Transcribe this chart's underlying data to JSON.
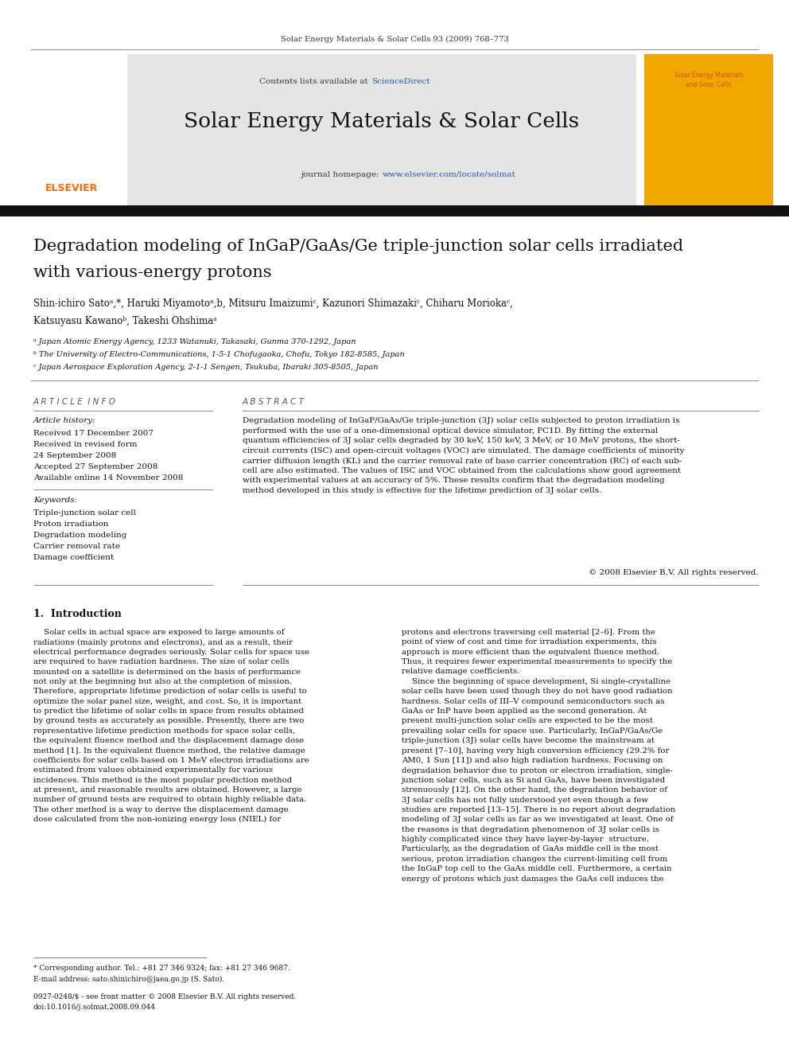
{
  "page_width": 9.92,
  "page_height": 13.23,
  "background_color": "#ffffff",
  "top_journal_ref": "Solar Energy Materials & Solar Cells 93 (2009) 768–773",
  "header_bg": "#e5e5e5",
  "header_sciencedirect_color": "#2255aa",
  "journal_url_color": "#2255aa",
  "journal_title": "Solar Energy Materials & Solar Cells",
  "journal_url": "www.elsevier.com/locate/solmat",
  "elsevier_color": "#ff6600",
  "cover_bg": "#f0a800",
  "cover_text_color": "#cc5500",
  "dark_bar_color": "#111111",
  "article_title_line1": "Degradation modeling of InGaP/GaAs/Ge triple-junction solar cells irradiated",
  "article_title_line2": "with various-energy protons",
  "authors_line1": "Shin-ichiro Satoᵃ,*, Haruki Miyamotoᵃ,b, Mitsuru Imaizumiᶜ, Kazunori Shimazakiᶜ, Chiharu Moriokaᶜ,",
  "authors_line2": "Katsuyasu Kawanoᵇ, Takeshi Ohshimaᵃ",
  "affil_a": "ᵃ Japan Atomic Energy Agency, 1233 Watanuki, Takasaki, Gunma 370-1292, Japan",
  "affil_b": "ᵇ The University of Electro-Communications, 1-5-1 Chofugaoka, Chofu, Tokyo 182-8585, Japan",
  "affil_c": "ᶜ Japan Aerospace Exploration Agency, 2-1-1 Sengen, Tsukuba, Ibaraki 305-8505, Japan",
  "section_article_info": "A R T I C L E  I N F O",
  "section_abstract": "A B S T R A C T",
  "article_history_label": "Article history:",
  "received1": "Received 17 December 2007",
  "received_revised": "Received in revised form",
  "revised_date": "24 September 2008",
  "accepted": "Accepted 27 September 2008",
  "available": "Available online 14 November 2008",
  "keywords_label": "Keywords:",
  "keyword1": "Triple-junction solar cell",
  "keyword2": "Proton irradiation",
  "keyword3": "Degradation modeling",
  "keyword4": "Carrier removal rate",
  "keyword5": "Damage coefficient",
  "abstract_body": "Degradation modeling of InGaP/GaAs/Ge triple-junction (3J) solar cells subjected to proton irradiation is\nperformed with the use of a one-dimensional optical device simulator, PC1D. By fitting the external\nquantum efficiencies of 3J solar cells degraded by 30 keV, 150 keV, 3 MeV, or 10 MeV protons, the short-\ncircuit currents (ISC) and open-circuit voltages (VOC) are simulated. The damage coefficients of minority\ncarrier diffusion length (KL) and the carrier removal rate of base carrier concentration (RC) of each sub-\ncell are also estimated. The values of ISC and VOC obtained from the calculations show good agreement\nwith experimental values at an accuracy of 5%. These results confirm that the degradation modeling\nmethod developed in this study is effective for the lifetime prediction of 3J solar cells.",
  "abstract_copyright": "© 2008 Elsevier B.V. All rights reserved.",
  "intro_heading": "1.  Introduction",
  "intro_col1": "    Solar cells in actual space are exposed to large amounts of\nradiations (mainly protons and electrons), and as a result, their\nelectrical performance degrades seriously. Solar cells for space use\nare required to have radiation hardness. The size of solar cells\nmounted on a satellite is determined on the basis of performance\nnot only at the beginning but also at the completion of mission.\nTherefore, appropriate lifetime prediction of solar cells is useful to\noptimize the solar panel size, weight, and cost. So, it is important\nto predict the lifetime of solar cells in space from results obtained\nby ground tests as accurately as possible. Presently, there are two\nrepresentative lifetime prediction methods for space solar cells,\nthe equivalent fluence method and the displacement damage dose\nmethod [1]. In the equivalent fluence method, the relative damage\ncoefficients for solar cells based on 1 MeV electron irradiations are\nestimated from values obtained experimentally for various\nincidences. This method is the most popular prediction method\nat present, and reasonable results are obtained. However, a large\nnumber of ground tests are required to obtain highly reliable data.\nThe other method is a way to derive the displacement damage\ndose calculated from the non-ionizing energy loss (NIEL) for",
  "intro_col2": "protons and electrons traversing cell material [2–6]. From the\npoint of view of cost and time for irradiation experiments, this\napproach is more efficient than the equivalent fluence method.\nThus, it requires fewer experimental measurements to specify the\nrelative damage coefficients.\n    Since the beginning of space development, Si single-crystalline\nsolar cells have been used though they do not have good radiation\nhardness. Solar cells of III–V compound semiconductors such as\nGaAs or InP have been applied as the second generation. At\npresent multi-junction solar cells are expected to be the most\nprevailing solar cells for space use. Particularly, InGaP/GaAs/Ge\ntriple-junction (3J) solar cells have become the mainstream at\npresent [7–10], having very high conversion efficiency (29.2% for\nAM0, 1 Sun [11]) and also high radiation hardness. Focusing on\ndegradation behavior due to proton or electron irradiation, single-\njunction solar cells, such as Si and GaAs, have been investigated\nstrenuously [12]. On the other hand, the degradation behavior of\n3J solar cells has not fully understood yet even though a few\nstudies are reported [13–15]. There is no report about degradation\nmodeling of 3J solar cells as far as we investigated at least. One of\nthe reasons is that degradation phenomenon of 3J solar cells is\nhighly complicated since they have layer-by-layer  structure.\nParticularly, as the degradation of GaAs middle cell is the most\nserious, proton irradiation changes the current-limiting cell from\nthe InGaP top cell to the GaAs middle cell. Furthermore, a certain\nenergy of protons which just damages the GaAs cell induces the",
  "footnote_star": "* Corresponding author. Tel.: +81 27 346 9324; fax: +81 27 346 9687.",
  "footnote_email": "E-mail address: sato.shinichiro@jaea.go.jp (S. Sato).",
  "footnote_issn": "0927-0248/$ - see front matter © 2008 Elsevier B.V. All rights reserved.",
  "footnote_doi": "doi:10.1016/j.solmat.2008.09.044"
}
